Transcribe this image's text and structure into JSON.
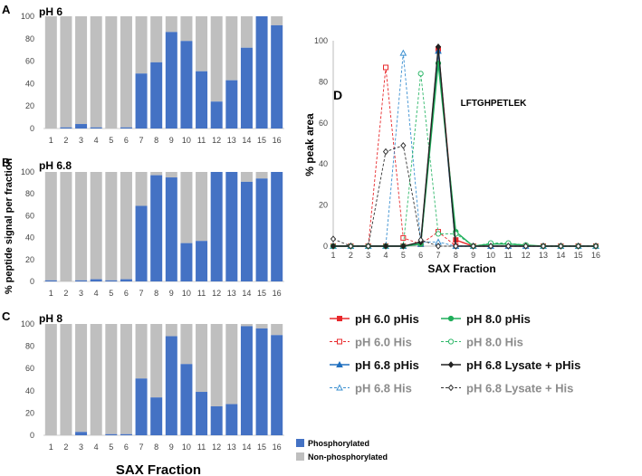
{
  "chart_data": [
    {
      "type": "bar",
      "stacked": true,
      "panel": "A",
      "title": "pH 6",
      "categories": [
        "1",
        "2",
        "3",
        "4",
        "5",
        "6",
        "7",
        "8",
        "9",
        "10",
        "11",
        "12",
        "13",
        "14",
        "15",
        "16"
      ],
      "series": [
        {
          "name": "Phosphorylated",
          "values": [
            0,
            1,
            4,
            1,
            0,
            1,
            49,
            59,
            86,
            78,
            51,
            24,
            43,
            72,
            100,
            92
          ]
        },
        {
          "name": "Non-phosphorylated",
          "values": [
            100,
            99,
            96,
            99,
            100,
            99,
            51,
            41,
            14,
            22,
            49,
            76,
            57,
            28,
            0,
            8
          ]
        }
      ],
      "ylim": [
        0,
        100
      ],
      "yticks": [
        "0",
        "20",
        "40",
        "60",
        "80",
        "100"
      ]
    },
    {
      "type": "bar",
      "stacked": true,
      "panel": "B",
      "title": "pH 6.8",
      "categories": [
        "1",
        "2",
        "3",
        "4",
        "5",
        "6",
        "7",
        "8",
        "9",
        "10",
        "11",
        "12",
        "13",
        "14",
        "15",
        "16"
      ],
      "series": [
        {
          "name": "Phosphorylated",
          "values": [
            1,
            0,
            1,
            2,
            1,
            2,
            69,
            97,
            95,
            35,
            37,
            100,
            100,
            91,
            94,
            100
          ]
        },
        {
          "name": "Non-phosphorylated",
          "values": [
            99,
            100,
            99,
            98,
            99,
            98,
            31,
            3,
            5,
            65,
            63,
            0,
            0,
            9,
            6,
            0
          ]
        }
      ],
      "ylim": [
        0,
        100
      ],
      "yticks": [
        "0",
        "20",
        "40",
        "60",
        "80",
        "100"
      ]
    },
    {
      "type": "bar",
      "stacked": true,
      "panel": "C",
      "title": "pH 8",
      "categories": [
        "1",
        "2",
        "3",
        "4",
        "5",
        "6",
        "7",
        "8",
        "9",
        "10",
        "11",
        "12",
        "13",
        "14",
        "15",
        "16"
      ],
      "series": [
        {
          "name": "Phosphorylated",
          "values": [
            0,
            0,
            3,
            0,
            1,
            1,
            51,
            34,
            89,
            64,
            39,
            26,
            28,
            98,
            96,
            90
          ]
        },
        {
          "name": "Non-phosphorylated",
          "values": [
            100,
            100,
            97,
            100,
            99,
            99,
            49,
            66,
            11,
            36,
            61,
            74,
            72,
            2,
            4,
            10
          ]
        }
      ],
      "ylim": [
        0,
        100
      ],
      "yticks": [
        "0",
        "20",
        "40",
        "60",
        "80",
        "100"
      ]
    },
    {
      "type": "line",
      "panel": "D",
      "title": "LFTGHPETLEK",
      "xlabel": "SAX Fraction",
      "ylabel": "% peak area",
      "x": [
        1,
        2,
        3,
        4,
        5,
        6,
        7,
        8,
        9,
        10,
        11,
        12,
        13,
        14,
        15,
        16
      ],
      "ylim": [
        0,
        100
      ],
      "yticks": [
        "0",
        "20",
        "40",
        "60",
        "80",
        "100"
      ],
      "series": [
        {
          "name": "pH 6.0 pHis",
          "color": "#e8282b",
          "dashed": false,
          "marker": "square-filled",
          "values": [
            0,
            0,
            0,
            0,
            0,
            1,
            96,
            3,
            0,
            0,
            0,
            0,
            0,
            0,
            0,
            0
          ]
        },
        {
          "name": "pH 6.0 His",
          "color": "#e8282b",
          "dashed": true,
          "marker": "square-open",
          "values": [
            0,
            0,
            0,
            87,
            4,
            1,
            7,
            0,
            0,
            0,
            0,
            0,
            0,
            0,
            0,
            0
          ]
        },
        {
          "name": "pH 6.8 pHis",
          "color": "#1f6fbf",
          "dashed": false,
          "marker": "triangle-filled",
          "values": [
            0,
            0,
            0,
            0,
            0,
            1,
            95,
            0,
            0,
            0,
            0,
            0,
            0,
            0,
            0,
            0
          ]
        },
        {
          "name": "pH 6.8 His",
          "color": "#3a8fd0",
          "dashed": true,
          "marker": "triangle-open",
          "values": [
            0,
            0,
            0,
            0,
            94,
            2,
            2,
            0,
            0,
            0,
            0,
            0,
            0,
            0,
            0,
            0
          ]
        },
        {
          "name": "pH 8.0 pHis",
          "color": "#1fae5a",
          "dashed": false,
          "marker": "circle-filled",
          "values": [
            0,
            0,
            0,
            0,
            0,
            1,
            89,
            7,
            0,
            1,
            1,
            0.5,
            0,
            0,
            0,
            0
          ]
        },
        {
          "name": "pH 8.0 His",
          "color": "#2fb86a",
          "dashed": true,
          "marker": "circle-open",
          "values": [
            0,
            0,
            0,
            0,
            0,
            84,
            6,
            6,
            0,
            1.5,
            1.5,
            0.5,
            0,
            0,
            0,
            0
          ]
        },
        {
          "name": "pH 6.8 Lysate + pHis",
          "color": "#222222",
          "dashed": false,
          "marker": "diamond-filled",
          "values": [
            0,
            0,
            0,
            0,
            0,
            2,
            97,
            0,
            0,
            0,
            0,
            0,
            0,
            0,
            0,
            0
          ]
        },
        {
          "name": "pH 6.8 Lysate + His",
          "color": "#333333",
          "dashed": true,
          "marker": "diamond-open",
          "values": [
            3.5,
            0,
            0,
            46,
            49,
            3,
            0,
            0,
            0,
            0,
            0,
            0,
            0,
            0,
            0,
            0
          ]
        }
      ]
    }
  ],
  "panel_labels": [
    "A",
    "B",
    "C",
    "D"
  ],
  "shared": {
    "ylabel": "% peptide signal per fraction",
    "xlabel": "SAX Fraction",
    "legend": [
      "Phosphorylated",
      "Non-phosphorylated"
    ]
  },
  "colors": {
    "phos": "#4472c4",
    "nonphos": "#bfbfbf",
    "his_label": "#8c8c8c"
  }
}
